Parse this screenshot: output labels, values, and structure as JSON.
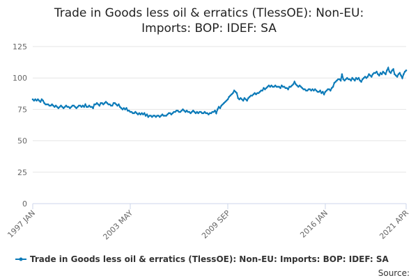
{
  "chart_data": {
    "type": "line",
    "title": "Trade in Goods less oil & erratics (TlessOE): Non-EU: Imports: BOP: IDEF: SA",
    "source": "Source:",
    "categories": [
      "1997 JAN",
      null,
      null,
      null,
      null,
      null,
      null,
      null,
      null,
      null,
      null,
      null,
      null,
      null,
      null,
      null,
      null,
      null,
      null,
      null,
      null,
      null,
      null,
      null,
      null,
      null,
      null,
      null,
      null,
      null,
      null,
      null,
      null,
      null,
      null,
      null,
      null,
      null,
      null,
      null,
      null,
      null,
      null,
      null,
      null,
      null,
      null,
      null,
      null,
      null,
      null,
      null,
      null,
      null,
      null,
      null,
      null,
      null,
      null,
      null,
      null,
      null,
      null,
      null,
      null,
      null,
      null,
      null,
      null,
      null,
      null,
      null,
      null,
      null,
      null,
      null,
      "2003 MAY",
      null,
      null,
      null,
      null,
      null,
      null,
      null,
      null,
      null,
      null,
      null,
      null,
      null,
      null,
      null,
      null,
      null,
      null,
      null,
      null,
      null,
      null,
      null,
      null,
      null,
      null,
      null,
      null,
      null,
      null,
      null,
      null,
      null,
      null,
      null,
      null,
      null,
      null,
      null,
      null,
      null,
      null,
      null,
      null,
      null,
      null,
      null,
      null,
      null,
      null,
      null,
      null,
      null,
      null,
      null,
      null,
      null,
      null,
      null,
      null,
      null,
      null,
      null,
      null,
      null,
      null,
      null,
      null,
      null,
      null,
      null,
      null,
      null,
      null,
      null,
      "2009 SEP",
      null,
      null,
      null,
      null,
      null,
      null,
      null,
      null,
      null,
      null,
      null,
      null,
      null,
      null,
      null,
      null,
      null,
      null,
      null,
      null,
      null,
      null,
      null,
      null,
      null,
      null,
      null,
      null,
      null,
      null,
      null,
      null,
      null,
      null,
      null,
      null,
      null,
      null,
      null,
      null,
      null,
      null,
      null,
      null,
      null,
      null,
      null,
      null,
      null,
      null,
      null,
      null,
      null,
      null,
      null,
      null,
      null,
      null,
      null,
      null,
      null,
      null,
      null,
      null,
      null,
      null,
      null,
      null,
      null,
      null,
      null,
      null,
      null,
      null,
      null,
      "2016 JAN",
      null,
      null,
      null,
      null,
      null,
      null,
      null,
      null,
      null,
      null,
      null,
      null,
      null,
      null,
      null,
      null,
      null,
      null,
      null,
      null,
      null,
      null,
      null,
      null,
      null,
      null,
      null,
      null,
      null,
      null,
      null,
      null,
      null,
      null,
      null,
      null,
      null,
      null,
      null,
      null,
      null,
      null,
      null,
      null,
      null,
      null,
      null,
      null,
      null,
      null,
      null,
      null,
      null,
      null,
      null,
      null,
      null,
      null,
      null,
      null,
      null,
      null,
      "2021 APR"
    ],
    "series": [
      {
        "name": "Trade in Goods less oil & erratics (TlessOE): Non-EU: Imports: BOP: IDEF: SA",
        "color": "#0b7ab8",
        "values": [
          83,
          82,
          83,
          82,
          83,
          82,
          81,
          83,
          82,
          80,
          79,
          79,
          79,
          78,
          78,
          79,
          78,
          77,
          78,
          77,
          76,
          77,
          78,
          77,
          76,
          77,
          78,
          77,
          77,
          76,
          77,
          78,
          78,
          77,
          76,
          77,
          78,
          78,
          77,
          78,
          77,
          79,
          77,
          77,
          78,
          77,
          77,
          76,
          79,
          79,
          80,
          79,
          78,
          80,
          80,
          79,
          80,
          81,
          80,
          79,
          79,
          78,
          78,
          80,
          80,
          79,
          78,
          79,
          77,
          76,
          75,
          76,
          75,
          76,
          74,
          74,
          73,
          73,
          72,
          72,
          73,
          72,
          71,
          72,
          71,
          72,
          71,
          72,
          70,
          71,
          69,
          70,
          70,
          69,
          70,
          70,
          69,
          70,
          70,
          69,
          70,
          71,
          70,
          70,
          70,
          71,
          72,
          72,
          71,
          72,
          73,
          73,
          74,
          74,
          73,
          73,
          74,
          75,
          74,
          73,
          74,
          73,
          73,
          72,
          73,
          74,
          73,
          72,
          73,
          72,
          73,
          73,
          72,
          72,
          73,
          72,
          72,
          71,
          72,
          72,
          73,
          73,
          74,
          72,
          75,
          77,
          76,
          78,
          79,
          80,
          81,
          82,
          83,
          85,
          86,
          87,
          88,
          90,
          89,
          88,
          84,
          83,
          84,
          83,
          82,
          84,
          83,
          82,
          84,
          85,
          86,
          86,
          87,
          88,
          87,
          88,
          88,
          89,
          90,
          90,
          92,
          91,
          92,
          93,
          94,
          93,
          94,
          93,
          93,
          94,
          93,
          93,
          93,
          92,
          94,
          93,
          93,
          92,
          92,
          91,
          93,
          93,
          94,
          95,
          97,
          95,
          94,
          93,
          94,
          93,
          92,
          91,
          91,
          90,
          90,
          91,
          91,
          90,
          91,
          90,
          91,
          90,
          89,
          89,
          90,
          88,
          89,
          87,
          89,
          90,
          91,
          91,
          90,
          92,
          93,
          96,
          97,
          98,
          99,
          99,
          98,
          103,
          99,
          98,
          99,
          100,
          99,
          99,
          98,
          100,
          99,
          98,
          100,
          99,
          100,
          98,
          97,
          99,
          100,
          101,
          100,
          101,
          103,
          102,
          101,
          103,
          104,
          104,
          105,
          103,
          102,
          104,
          103,
          105,
          104,
          103,
          106,
          108,
          105,
          104,
          106,
          107,
          103,
          102,
          101,
          103,
          104,
          102,
          100,
          103,
          105,
          106
        ]
      }
    ],
    "ylim": [
      0,
      125
    ],
    "yticks": [
      0,
      25,
      50,
      75,
      100,
      125
    ],
    "grid": true
  }
}
